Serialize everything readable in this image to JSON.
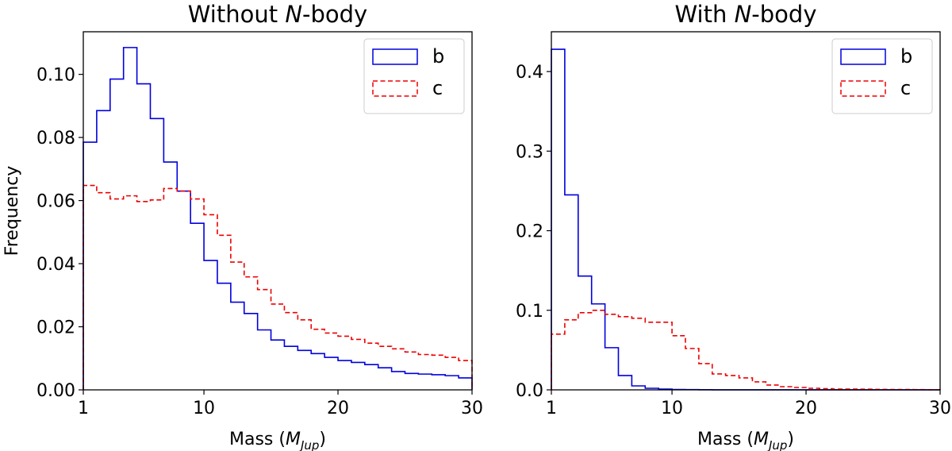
{
  "chart_data": [
    {
      "type": "histogram-step",
      "title": "Without N-body",
      "title_parts": [
        "Without ",
        "N",
        "-body"
      ],
      "xlabel": "Mass (M_Jup)",
      "xlabel_parts": [
        "Mass (",
        "M",
        "Jup",
        ")"
      ],
      "ylabel": "Frequency",
      "xlim": [
        1,
        30
      ],
      "ylim": [
        0,
        0.1135
      ],
      "xticks": [
        1,
        10,
        20,
        30
      ],
      "xtick_labels": [
        "1",
        "10",
        "20",
        "30"
      ],
      "yticks": [
        0,
        0.02,
        0.04,
        0.06,
        0.08,
        0.1
      ],
      "ytick_labels": [
        "0.00",
        "0.02",
        "0.04",
        "0.06",
        "0.08",
        "0.10"
      ],
      "bin_edges": [
        1,
        2,
        3,
        4,
        5,
        6,
        7,
        8,
        9,
        10,
        11,
        12,
        13,
        14,
        15,
        16,
        17,
        18,
        19,
        20,
        21,
        22,
        23,
        24,
        25,
        26,
        27,
        28,
        29,
        30
      ],
      "legend": {
        "position": "top-right",
        "entries": [
          "b",
          "c"
        ]
      },
      "series": [
        {
          "name": "b",
          "color": "#0000dd",
          "style": "solid",
          "values": [
            0.0785,
            0.0885,
            0.0985,
            0.1085,
            0.097,
            0.086,
            0.0722,
            0.063,
            0.0528,
            0.041,
            0.0338,
            0.0278,
            0.0242,
            0.019,
            0.0158,
            0.0138,
            0.0125,
            0.0115,
            0.0103,
            0.0093,
            0.0087,
            0.008,
            0.007,
            0.0058,
            0.0052,
            0.005,
            0.0048,
            0.0045,
            0.0038
          ]
        },
        {
          "name": "c",
          "color": "#ee0000",
          "style": "dashed",
          "values": [
            0.0648,
            0.0625,
            0.0605,
            0.0615,
            0.0597,
            0.0602,
            0.0638,
            0.063,
            0.0605,
            0.0555,
            0.049,
            0.0405,
            0.0358,
            0.0318,
            0.0272,
            0.0245,
            0.0222,
            0.0192,
            0.018,
            0.017,
            0.016,
            0.0148,
            0.0138,
            0.013,
            0.012,
            0.0112,
            0.011,
            0.0103,
            0.0093
          ]
        }
      ]
    },
    {
      "type": "histogram-step",
      "title": "With N-body",
      "title_parts": [
        "With ",
        "N",
        "-body"
      ],
      "xlabel": "Mass (M_Jup)",
      "xlabel_parts": [
        "Mass (",
        "M",
        "Jup",
        ")"
      ],
      "ylabel": "",
      "xlim": [
        1,
        30
      ],
      "ylim": [
        0,
        0.45
      ],
      "xticks": [
        1,
        10,
        20,
        30
      ],
      "xtick_labels": [
        "1",
        "10",
        "20",
        "30"
      ],
      "yticks": [
        0,
        0.1,
        0.2,
        0.3,
        0.4
      ],
      "ytick_labels": [
        "0.0",
        "0.1",
        "0.2",
        "0.3",
        "0.4"
      ],
      "bin_edges": [
        1,
        2,
        3,
        4,
        5,
        6,
        7,
        8,
        9,
        10,
        11,
        12,
        13,
        14,
        15,
        16,
        17,
        18,
        19,
        20,
        21,
        22,
        23,
        24,
        25,
        26,
        27,
        28,
        29,
        30
      ],
      "legend": {
        "position": "top-right",
        "entries": [
          "b",
          "c"
        ]
      },
      "series": [
        {
          "name": "b",
          "color": "#0000dd",
          "style": "solid",
          "values": [
            0.428,
            0.245,
            0.143,
            0.108,
            0.053,
            0.018,
            0.005,
            0.002,
            0.001,
            0.0005,
            0.0003,
            0.0002,
            0.0001,
            0.0001,
            0.0001,
            0.0001,
            0.0001,
            0.0001,
            0.0001,
            0.0001,
            0.0001,
            0.0001,
            0.0001,
            0.0001,
            0.0001,
            0.0001,
            0.0001,
            0.0001,
            0.0001
          ]
        },
        {
          "name": "c",
          "color": "#ee0000",
          "style": "dashed",
          "values": [
            0.07,
            0.088,
            0.097,
            0.1,
            0.095,
            0.092,
            0.09,
            0.085,
            0.085,
            0.068,
            0.052,
            0.033,
            0.02,
            0.018,
            0.015,
            0.01,
            0.006,
            0.004,
            0.003,
            0.002,
            0.0015,
            0.001,
            0.001,
            0.0008,
            0.0006,
            0.0005,
            0.0004,
            0.0003,
            0.0002
          ]
        }
      ]
    }
  ]
}
